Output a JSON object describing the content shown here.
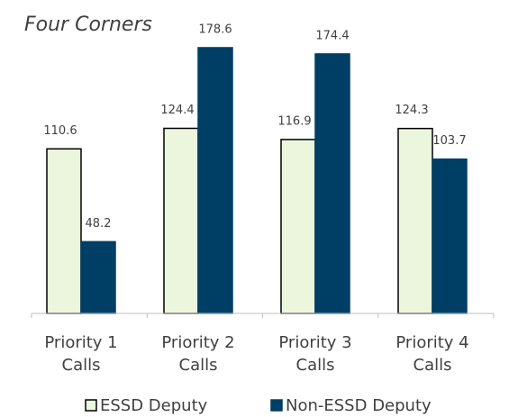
{
  "chart_data": {
    "type": "bar",
    "title": "Four Corners",
    "categories": [
      "Priority 1 Calls",
      "Priority 2 Calls",
      "Priority 3 Calls",
      "Priority 4 Calls"
    ],
    "series": [
      {
        "name": "ESSD Deputy",
        "color": "#ebf6dd",
        "values": [
          110.6,
          124.4,
          116.9,
          124.3
        ]
      },
      {
        "name": "Non-ESSD Deputy",
        "color": "#003f65",
        "values": [
          48.2,
          178.6,
          174.4,
          103.7
        ]
      }
    ],
    "ylim": [
      0,
      200
    ],
    "legend": "bottom"
  }
}
